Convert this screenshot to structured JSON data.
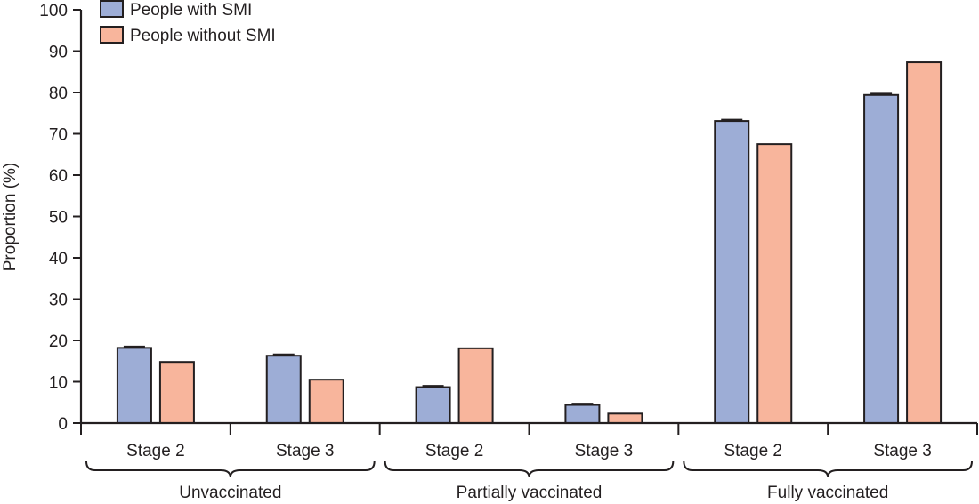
{
  "chart_data": {
    "type": "bar",
    "ylabel": "Proportion (%)",
    "ylim": [
      0,
      100
    ],
    "yticks": [
      0,
      10,
      20,
      30,
      40,
      50,
      60,
      70,
      80,
      90,
      100
    ],
    "grid": false,
    "legend_position": "top-left",
    "groups": [
      {
        "label": "Unvaccinated",
        "categories": [
          "Stage 2",
          "Stage 3"
        ]
      },
      {
        "label": "Partially vaccinated",
        "categories": [
          "Stage 2",
          "Stage 3"
        ]
      },
      {
        "label": "Fully vaccinated",
        "categories": [
          "Stage 2",
          "Stage 3"
        ]
      }
    ],
    "series": [
      {
        "name": "People with SMI",
        "color": "#9dadd6",
        "values": [
          18.2,
          16.3,
          8.7,
          4.4,
          73.1,
          79.4
        ],
        "error_bars": true
      },
      {
        "name": "People without SMI",
        "color": "#f8b59c",
        "values": [
          14.8,
          10.5,
          18.1,
          2.3,
          67.5,
          87.3
        ],
        "error_bars": false
      }
    ]
  }
}
